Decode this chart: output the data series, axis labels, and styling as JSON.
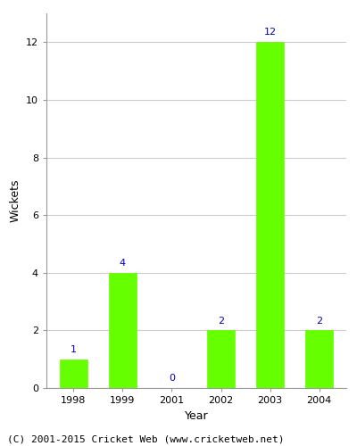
{
  "years": [
    "1998",
    "1999",
    "2001",
    "2002",
    "2003",
    "2004"
  ],
  "values": [
    1,
    4,
    0,
    2,
    12,
    2
  ],
  "bar_color": "#66ff00",
  "bar_edge_color": "#66ff00",
  "label_color": "#0000cc",
  "ylabel": "Wickets",
  "xlabel": "Year",
  "ylim": [
    0,
    13
  ],
  "yticks": [
    0,
    2,
    4,
    6,
    8,
    10,
    12
  ],
  "footer": "(C) 2001-2015 Cricket Web (www.cricketweb.net)",
  "grid_color": "#cccccc",
  "background_color": "#ffffff",
  "label_fontsize": 8,
  "axis_label_fontsize": 9,
  "tick_fontsize": 8,
  "footer_fontsize": 8
}
